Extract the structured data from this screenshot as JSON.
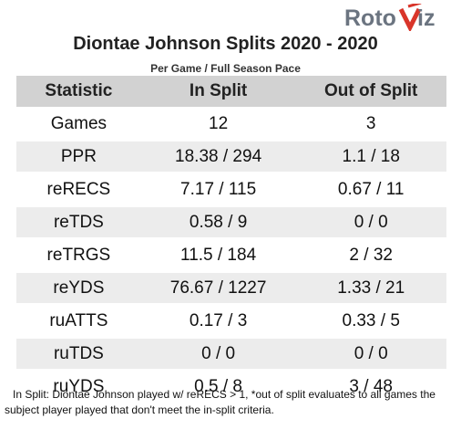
{
  "brand": {
    "logo_text_left": "Roto",
    "logo_text_right": "iz",
    "accent": "#d9352a",
    "logo_gray": "#6b7480"
  },
  "title": "Diontae Johnson Splits 2020 - 2020",
  "subtitle": "Per Game / Full Season Pace",
  "table": {
    "headers": [
      "Statistic",
      "In Split",
      "Out of Split"
    ],
    "rows": [
      [
        "Games",
        "12",
        "3"
      ],
      [
        "PPR",
        "18.38 / 294",
        "1.1 / 18"
      ],
      [
        "reRECS",
        "7.17 / 115",
        "0.67 / 11"
      ],
      [
        "reTDS",
        "0.58 / 9",
        "0 / 0"
      ],
      [
        "reTRGS",
        "11.5 / 184",
        "2 / 32"
      ],
      [
        "reYDS",
        "76.67 / 1227",
        "1.33 / 21"
      ],
      [
        "ruATTS",
        "0.17 / 3",
        "0.33 / 5"
      ],
      [
        "ruTDS",
        "0 / 0",
        "0 / 0"
      ],
      [
        "ruYDS",
        "0.5 / 8",
        "3 / 48"
      ]
    ]
  },
  "note": "In Split: Diontae Johnson played w/ reRECS > 1,  *out of split evaluates to all games the subject player played that don't meet the in-split criteria."
}
